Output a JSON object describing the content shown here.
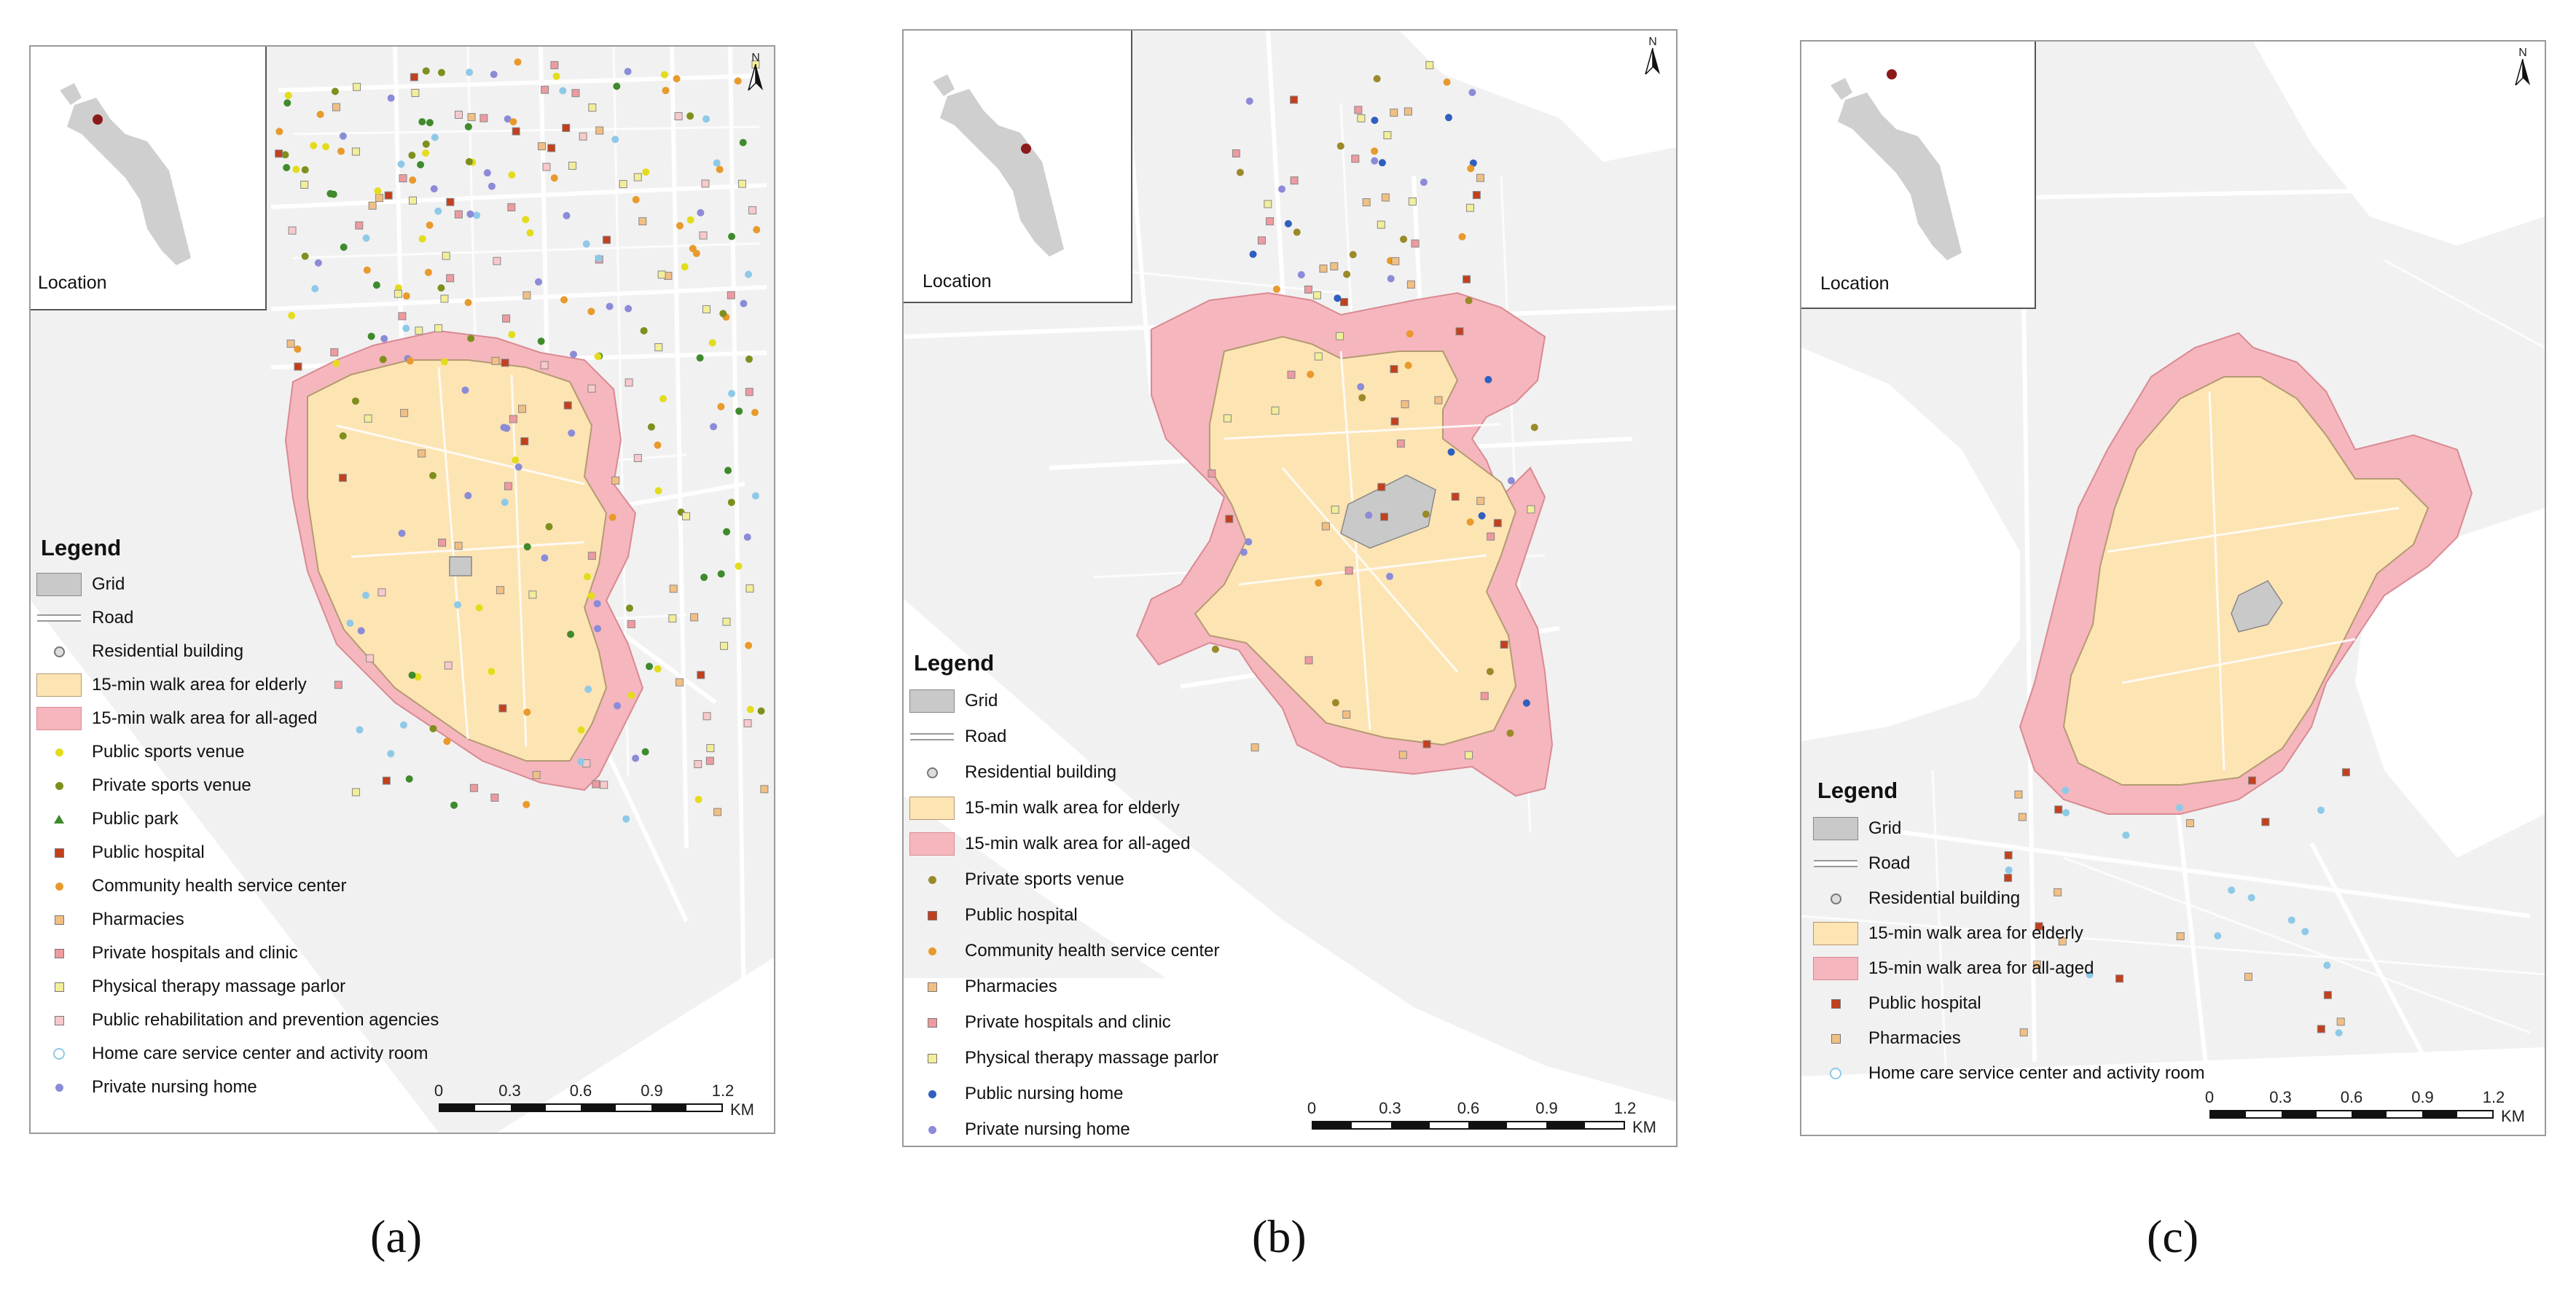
{
  "panels": {
    "a": {
      "inset_label": "Location",
      "north_label": "N",
      "legend_title": "Legend",
      "legend": [
        {
          "label": "Grid",
          "symbol": "grid"
        },
        {
          "label": "Road",
          "symbol": "road"
        },
        {
          "label": "Residential building",
          "symbol": "residential"
        },
        {
          "label": "15-min walk area for elderly",
          "symbol": "elderly"
        },
        {
          "label": "15-min walk area for all-aged",
          "symbol": "allaged"
        },
        {
          "label": "Public sports venue",
          "symbol": "dot",
          "color": "#e3dc1c"
        },
        {
          "label": "Private sports venue",
          "symbol": "dot",
          "color": "#7f8f1e"
        },
        {
          "label": "Public park",
          "symbol": "triangle",
          "color": "#3f8a2d"
        },
        {
          "label": "Public hospital",
          "symbol": "square",
          "color": "#c2401e"
        },
        {
          "label": "Community health service center",
          "symbol": "dot",
          "color": "#e89a2c"
        },
        {
          "label": "Pharmacies",
          "symbol": "square",
          "color": "#f2bf83"
        },
        {
          "label": "Private hospitals and clinic",
          "symbol": "square",
          "color": "#ee9aa0"
        },
        {
          "label": "Physical therapy massage parlor",
          "symbol": "square",
          "color": "#f2ee99"
        },
        {
          "label": "Public rehabilitation and prevention agencies",
          "symbol": "square",
          "color": "#f8c9cc"
        },
        {
          "label": "Home care service center and activity room",
          "symbol": "ring",
          "color": "#8ec9e8"
        },
        {
          "label": "Private nursing home",
          "symbol": "dot",
          "color": "#8b8bd8"
        }
      ],
      "scale": {
        "ticks": [
          "0",
          "0.3",
          "0.6",
          "0.9",
          "1.2"
        ],
        "unit": "KM"
      },
      "caption": "(a)"
    },
    "b": {
      "inset_label": "Location",
      "north_label": "N",
      "legend_title": "Legend",
      "legend": [
        {
          "label": "Grid",
          "symbol": "grid"
        },
        {
          "label": "Road",
          "symbol": "road"
        },
        {
          "label": "Residential building",
          "symbol": "residential"
        },
        {
          "label": "15-min walk area for elderly",
          "symbol": "elderly"
        },
        {
          "label": "15-min walk area for all-aged",
          "symbol": "allaged"
        },
        {
          "label": "Private sports venue",
          "symbol": "dot",
          "color": "#9a8a2a"
        },
        {
          "label": "Public hospital",
          "symbol": "square",
          "color": "#c2401e"
        },
        {
          "label": "Community health service center",
          "symbol": "dot",
          "color": "#e89a2c"
        },
        {
          "label": "Pharmacies",
          "symbol": "square",
          "color": "#f2bf83"
        },
        {
          "label": "Private hospitals and clinic",
          "symbol": "square",
          "color": "#ee9aa0"
        },
        {
          "label": "Physical therapy massage parlor",
          "symbol": "square",
          "color": "#f2ee99"
        },
        {
          "label": "Public nursing home",
          "symbol": "dot",
          "color": "#2f5fc0"
        },
        {
          "label": "Private nursing home",
          "symbol": "dot",
          "color": "#8b8bd8"
        }
      ],
      "scale": {
        "ticks": [
          "0",
          "0.3",
          "0.6",
          "0.9",
          "1.2"
        ],
        "unit": "KM"
      },
      "caption": "(b)"
    },
    "c": {
      "inset_label": "Location",
      "north_label": "N",
      "legend_title": "Legend",
      "legend": [
        {
          "label": "Grid",
          "symbol": "grid"
        },
        {
          "label": "Road",
          "symbol": "road"
        },
        {
          "label": "Residential building",
          "symbol": "residential"
        },
        {
          "label": "15-min walk area for elderly",
          "symbol": "elderly"
        },
        {
          "label": "15-min walk area for all-aged",
          "symbol": "allaged"
        },
        {
          "label": "Public hospital",
          "symbol": "square",
          "color": "#c2401e"
        },
        {
          "label": "Pharmacies",
          "symbol": "square",
          "color": "#f2bf83"
        },
        {
          "label": "Home care service center and activity room",
          "symbol": "ring",
          "color": "#8ec9e8"
        }
      ],
      "scale": {
        "ticks": [
          "0",
          "0.3",
          "0.6",
          "0.9",
          "1.2"
        ],
        "unit": "KM"
      },
      "caption": "(c)"
    }
  }
}
